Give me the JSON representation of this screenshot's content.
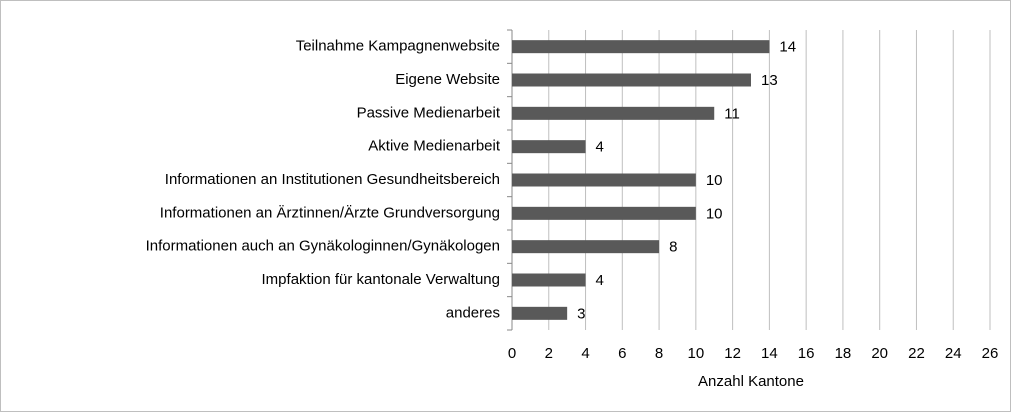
{
  "chart_data": {
    "type": "bar",
    "orientation": "horizontal",
    "categories": [
      "Teilnahme Kampagnenwebsite",
      "Eigene Website",
      "Passive Medienarbeit",
      "Aktive Medienarbeit",
      "Informationen an Institutionen Gesundheitsbereich",
      "Informationen an Ärztinnen/Ärzte Grundversorgung",
      "Informationen auch an Gynäkologinnen/Gynäkologen",
      "Impfaktion für kantonale Verwaltung",
      "anderes"
    ],
    "values": [
      14,
      13,
      11,
      4,
      10,
      10,
      8,
      4,
      3
    ],
    "color": "#595959",
    "x_label": "Anzahl Kantone",
    "xlim": [
      0,
      26
    ],
    "xticks": [
      0,
      2,
      4,
      6,
      8,
      10,
      12,
      14,
      16,
      18,
      20,
      22,
      24,
      26
    ],
    "grid": true
  }
}
